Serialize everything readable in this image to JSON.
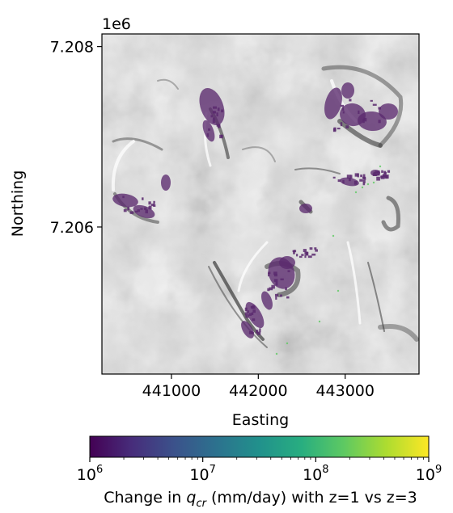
{
  "chart_data": {
    "type": "heatmap",
    "offset_label": "1e6",
    "xlabel": "Easting",
    "ylabel": "Northing",
    "xlim": [
      440200,
      443850
    ],
    "ylim": [
      7204370,
      7208140
    ],
    "x_ticks": [
      {
        "value": 441000,
        "label": "441000"
      },
      {
        "value": 442000,
        "label": "442000"
      },
      {
        "value": 443000,
        "label": "443000"
      }
    ],
    "y_ticks": [
      {
        "value": 7208000,
        "label": "7.208"
      },
      {
        "value": 7206000,
        "label": "7.206"
      }
    ],
    "colorbar": {
      "colormap": "viridis",
      "scale": "log",
      "range": [
        1000000,
        1000000000
      ],
      "colors": [
        "#440154",
        "#472d7b",
        "#3b528b",
        "#2c728e",
        "#21918c",
        "#28ae80",
        "#5ec962",
        "#addc30",
        "#fde725"
      ],
      "major_ticks": [
        {
          "base": "10",
          "exp": "6",
          "value": 1000000
        },
        {
          "base": "10",
          "exp": "7",
          "value": 10000000
        },
        {
          "base": "10",
          "exp": "8",
          "value": 100000000
        },
        {
          "base": "10",
          "exp": "9",
          "value": 1000000000
        }
      ],
      "label_prefix": "Change in ",
      "label_symbol": "q",
      "label_subscript": "cr",
      "label_suffix": " (mm/day) with z=1 vs z=3"
    },
    "overlay_color": "#5b2a6e"
  }
}
